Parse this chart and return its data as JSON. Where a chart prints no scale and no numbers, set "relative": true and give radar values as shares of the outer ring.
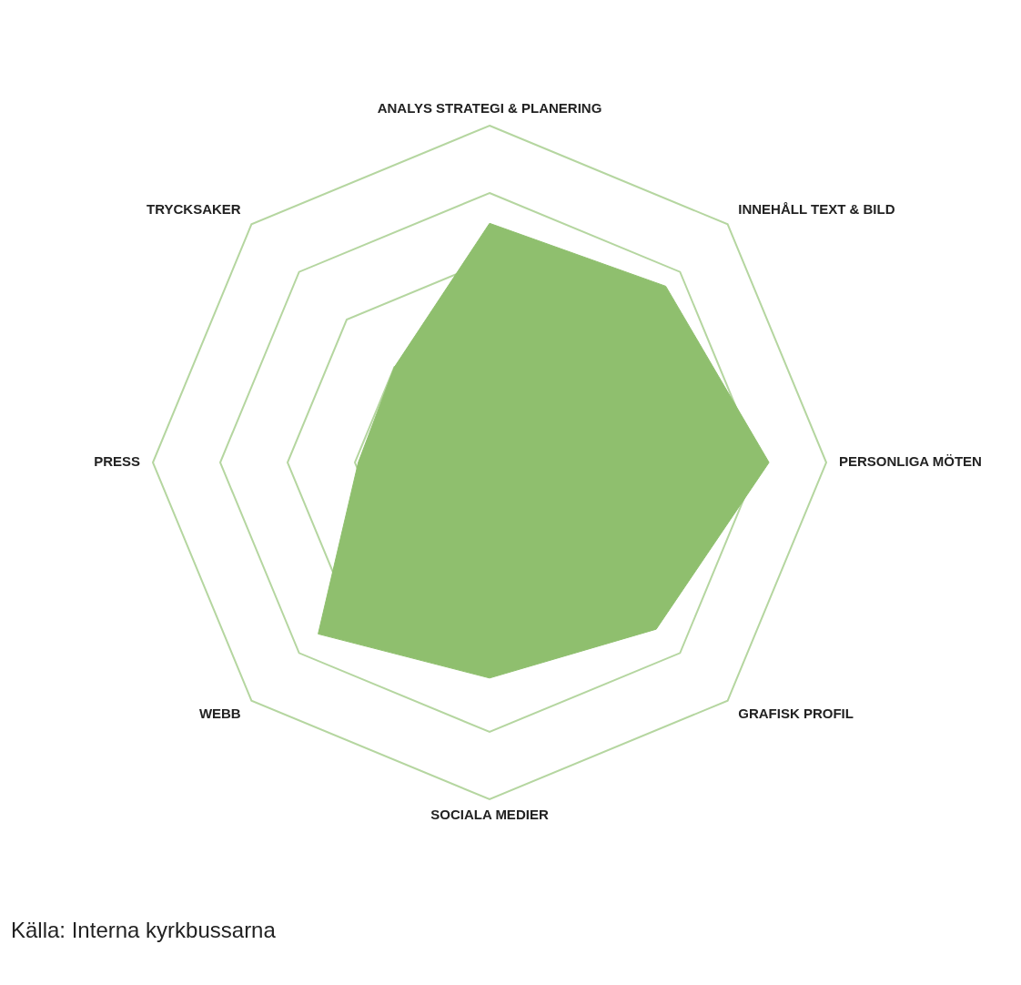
{
  "chart_data": {
    "type": "radar",
    "relative": true,
    "grid": true,
    "legend": false,
    "categories": [
      "ANALYS STRATEGI & PLANERING",
      "INNEHÅLL TEXT & BILD",
      "PERSONLIGA MÖTEN",
      "GRAFISK PROFIL",
      "SOCIALA MEDIER",
      "WEBB",
      "PRESS",
      "TRYCKSAKER"
    ],
    "series": [
      {
        "color": "#8fbf6e",
        "values": [
          0.71,
          0.74,
          0.83,
          0.7,
          0.64,
          0.72,
          0.39,
          0.4
        ]
      }
    ],
    "annotations": [
      "Källa: Interna kyrkbussarna"
    ]
  }
}
